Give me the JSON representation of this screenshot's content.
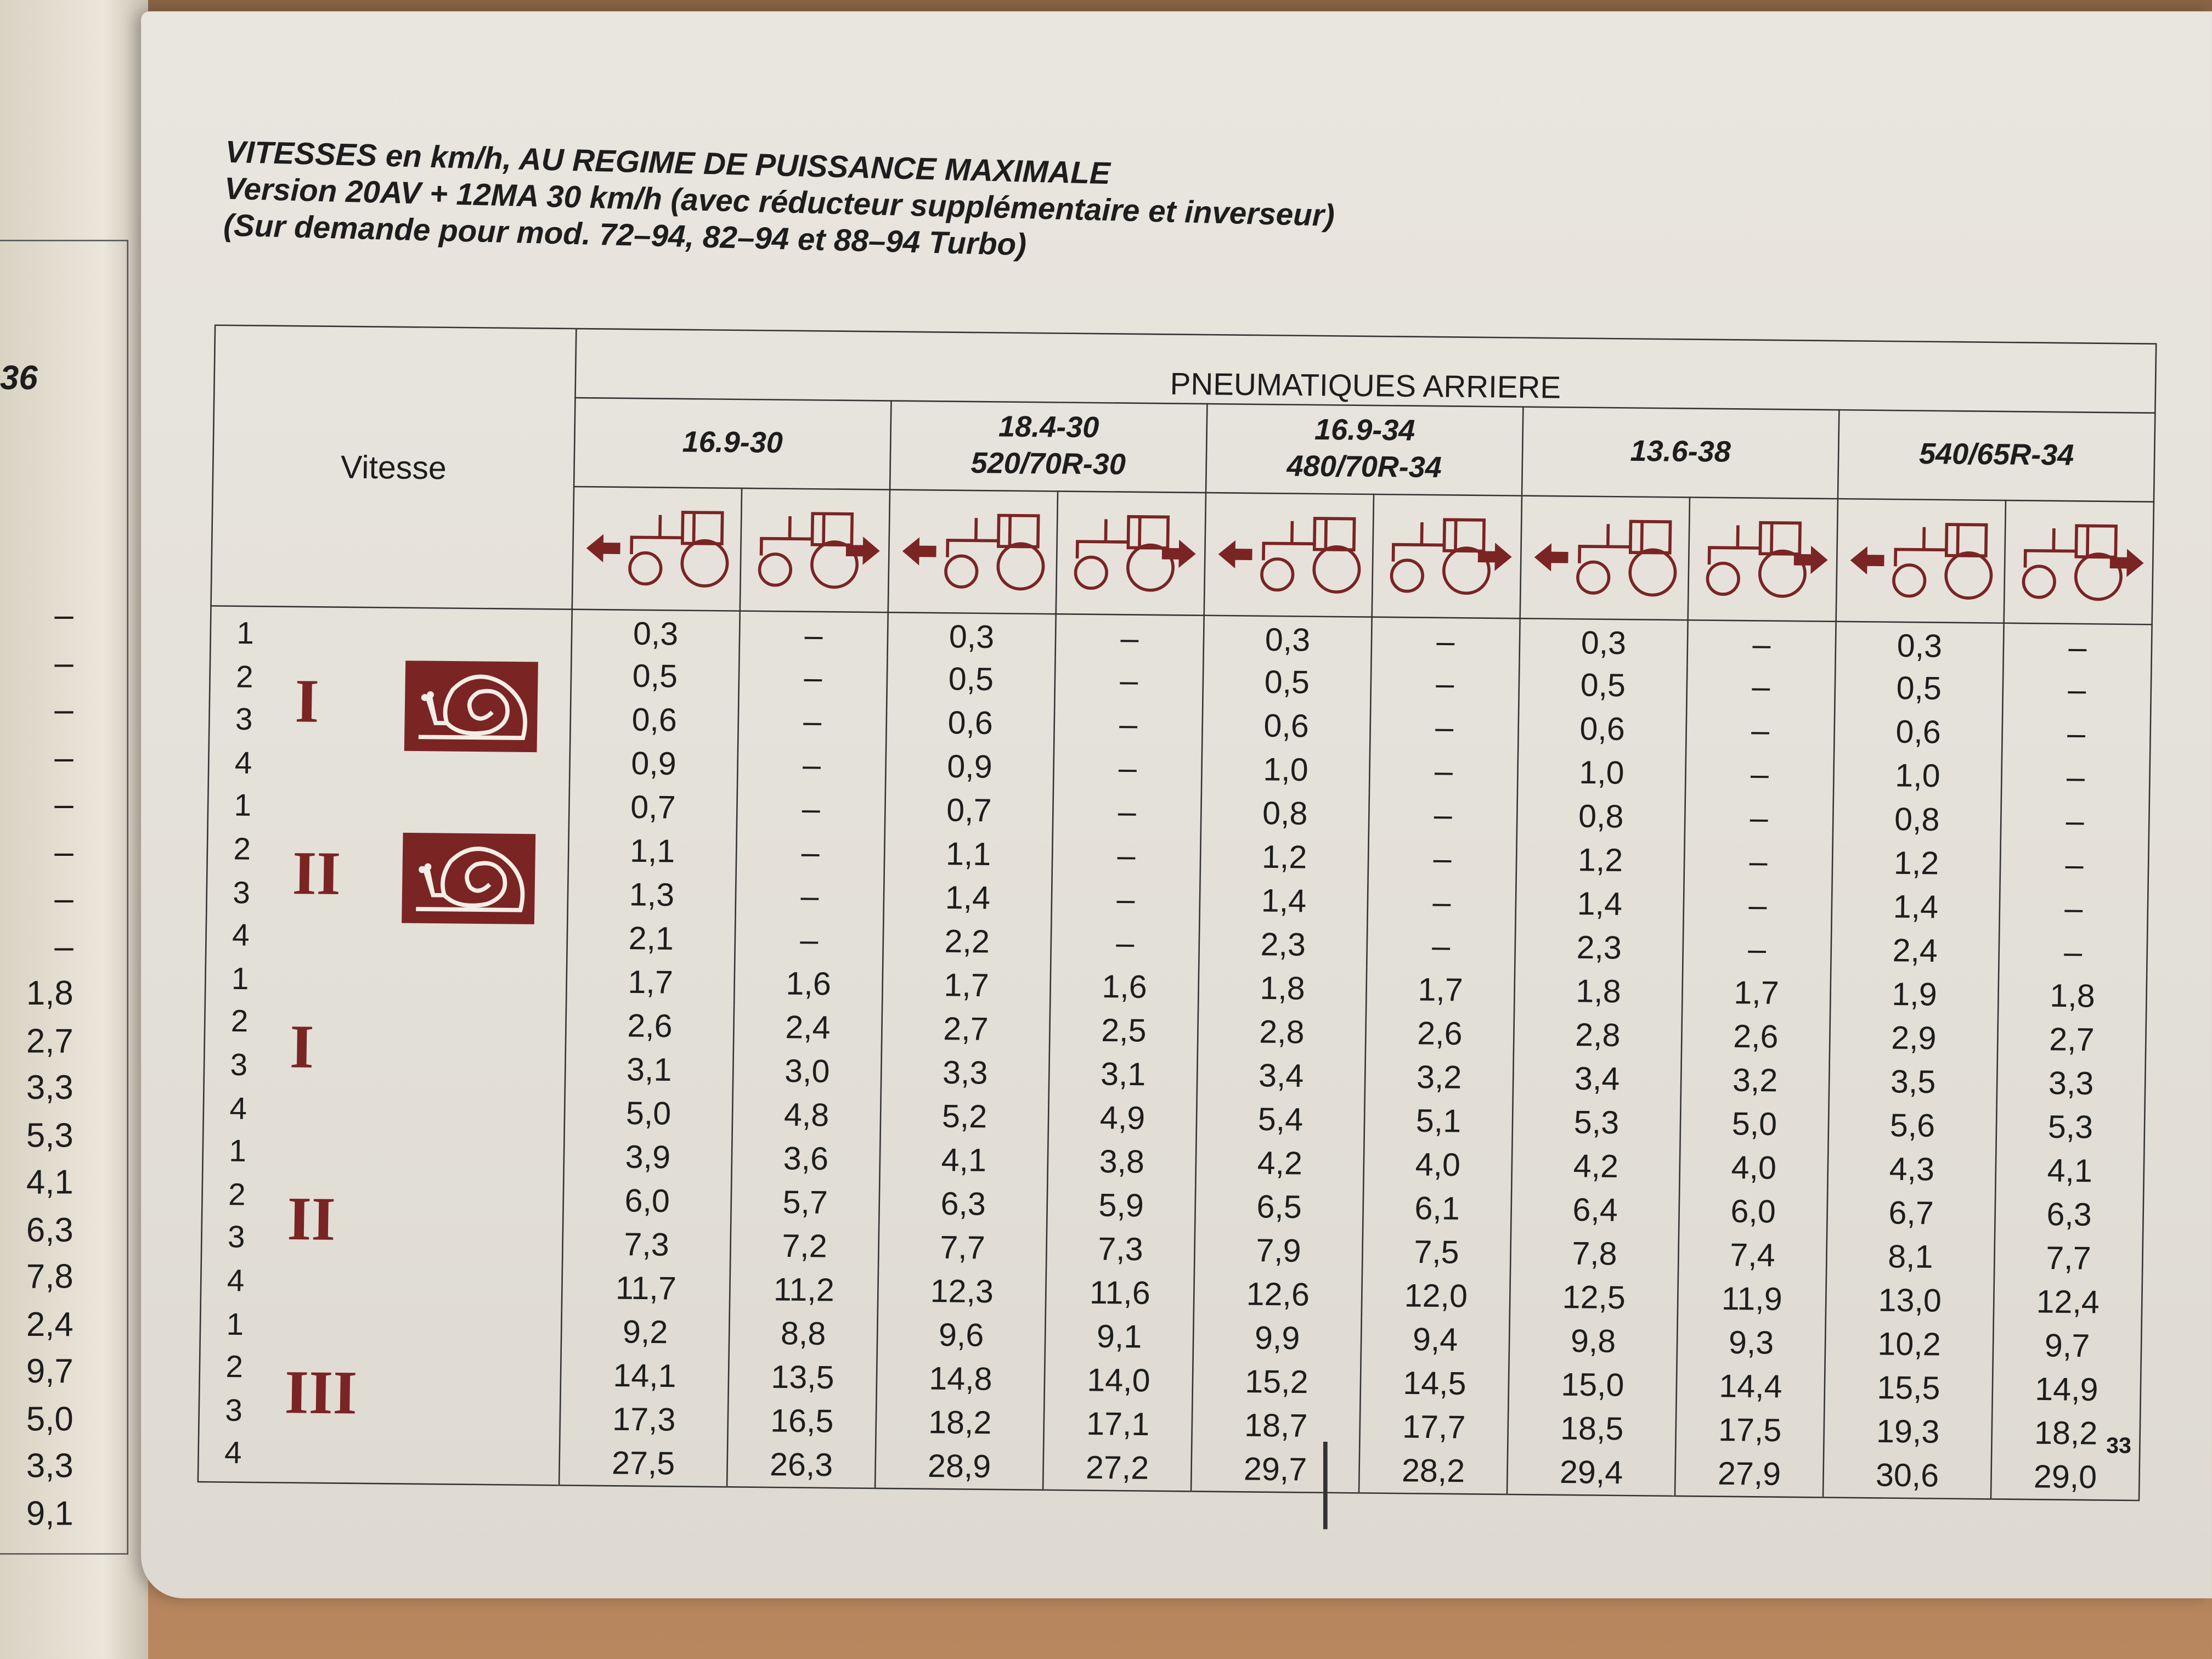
{
  "title": {
    "line1": "VITESSES en km/h, AU REGIME DE PUISSANCE MAXIMALE",
    "line2": "Version  20AV + 12MA 30 km/h (avec réducteur supplémentaire et inverseur)",
    "line3": "(Sur demande pour mod. 72–94, 82–94 et 88–94 Turbo)"
  },
  "left_page": {
    "number": "36",
    "values": [
      "–",
      "–",
      "–",
      "–",
      "–",
      "–",
      "–",
      "–",
      "1,8",
      "2,7",
      "3,3",
      "5,3",
      "4,1",
      "6,3",
      "7,8",
      "2,4",
      "9,7",
      "5,0",
      "3,3",
      "9,1"
    ]
  },
  "table": {
    "vitesse_header": "Vitesse",
    "group_header": "PNEUMATIQUES ARRIERE",
    "tires": [
      {
        "line1": "16.9-30",
        "line2": ""
      },
      {
        "line1": "18.4-30",
        "line2": "520/70R-30"
      },
      {
        "line1": "16.9-34",
        "line2": "480/70R-34"
      },
      {
        "line1": "13.6-38",
        "line2": ""
      },
      {
        "line1": "540/65R-34",
        "line2": ""
      }
    ],
    "direction_icons": [
      "tractor-forward-arrow-left-icon",
      "tractor-reverse-arrow-right-icon"
    ],
    "icon_color": "#7a2424",
    "ranges": [
      {
        "label": "I",
        "snail": true
      },
      {
        "label": "II",
        "snail": true
      },
      {
        "label": "I",
        "snail": false
      },
      {
        "label": "II",
        "snail": false
      },
      {
        "label": "III",
        "snail": false
      }
    ],
    "rows": [
      {
        "gear": "1",
        "values": [
          "0,3",
          "–",
          "0,3",
          "–",
          "0,3",
          "–",
          "0,3",
          "–",
          "0,3",
          "–"
        ]
      },
      {
        "gear": "2",
        "values": [
          "0,5",
          "–",
          "0,5",
          "–",
          "0,5",
          "–",
          "0,5",
          "–",
          "0,5",
          "–"
        ]
      },
      {
        "gear": "3",
        "values": [
          "0,6",
          "–",
          "0,6",
          "–",
          "0,6",
          "–",
          "0,6",
          "–",
          "0,6",
          "–"
        ]
      },
      {
        "gear": "4",
        "values": [
          "0,9",
          "–",
          "0,9",
          "–",
          "1,0",
          "–",
          "1,0",
          "–",
          "1,0",
          "–"
        ]
      },
      {
        "gear": "1",
        "values": [
          "0,7",
          "–",
          "0,7",
          "–",
          "0,8",
          "–",
          "0,8",
          "–",
          "0,8",
          "–"
        ]
      },
      {
        "gear": "2",
        "values": [
          "1,1",
          "–",
          "1,1",
          "–",
          "1,2",
          "–",
          "1,2",
          "–",
          "1,2",
          "–"
        ]
      },
      {
        "gear": "3",
        "values": [
          "1,3",
          "–",
          "1,4",
          "–",
          "1,4",
          "–",
          "1,4",
          "–",
          "1,4",
          "–"
        ]
      },
      {
        "gear": "4",
        "values": [
          "2,1",
          "–",
          "2,2",
          "–",
          "2,3",
          "–",
          "2,3",
          "–",
          "2,4",
          "–"
        ]
      },
      {
        "gear": "1",
        "values": [
          "1,7",
          "1,6",
          "1,7",
          "1,6",
          "1,8",
          "1,7",
          "1,8",
          "1,7",
          "1,9",
          "1,8"
        ]
      },
      {
        "gear": "2",
        "values": [
          "2,6",
          "2,4",
          "2,7",
          "2,5",
          "2,8",
          "2,6",
          "2,8",
          "2,6",
          "2,9",
          "2,7"
        ]
      },
      {
        "gear": "3",
        "values": [
          "3,1",
          "3,0",
          "3,3",
          "3,1",
          "3,4",
          "3,2",
          "3,4",
          "3,2",
          "3,5",
          "3,3"
        ]
      },
      {
        "gear": "4",
        "values": [
          "5,0",
          "4,8",
          "5,2",
          "4,9",
          "5,4",
          "5,1",
          "5,3",
          "5,0",
          "5,6",
          "5,3"
        ]
      },
      {
        "gear": "1",
        "values": [
          "3,9",
          "3,6",
          "4,1",
          "3,8",
          "4,2",
          "4,0",
          "4,2",
          "4,0",
          "4,3",
          "4,1"
        ]
      },
      {
        "gear": "2",
        "values": [
          "6,0",
          "5,7",
          "6,3",
          "5,9",
          "6,5",
          "6,1",
          "6,4",
          "6,0",
          "6,7",
          "6,3"
        ]
      },
      {
        "gear": "3",
        "values": [
          "7,3",
          "7,2",
          "7,7",
          "7,3",
          "7,9",
          "7,5",
          "7,8",
          "7,4",
          "8,1",
          "7,7"
        ]
      },
      {
        "gear": "4",
        "values": [
          "11,7",
          "11,2",
          "12,3",
          "11,6",
          "12,6",
          "12,0",
          "12,5",
          "11,9",
          "13,0",
          "12,4"
        ]
      },
      {
        "gear": "1",
        "values": [
          "9,2",
          "8,8",
          "9,6",
          "9,1",
          "9,9",
          "9,4",
          "9,8",
          "9,3",
          "10,2",
          "9,7"
        ]
      },
      {
        "gear": "2",
        "values": [
          "14,1",
          "13,5",
          "14,8",
          "14,0",
          "15,2",
          "14,5",
          "15,0",
          "14,4",
          "15,5",
          "14,9"
        ]
      },
      {
        "gear": "3",
        "values": [
          "17,3",
          "16,5",
          "18,2",
          "17,1",
          "18,7",
          "17,7",
          "18,5",
          "17,5",
          "19,3",
          "18,2"
        ]
      },
      {
        "gear": "4",
        "values": [
          "27,5",
          "26,3",
          "28,9",
          "27,2",
          "29,7",
          "28,2",
          "29,4",
          "27,9",
          "30,6",
          "29,0"
        ]
      }
    ]
  },
  "page_number": "33"
}
